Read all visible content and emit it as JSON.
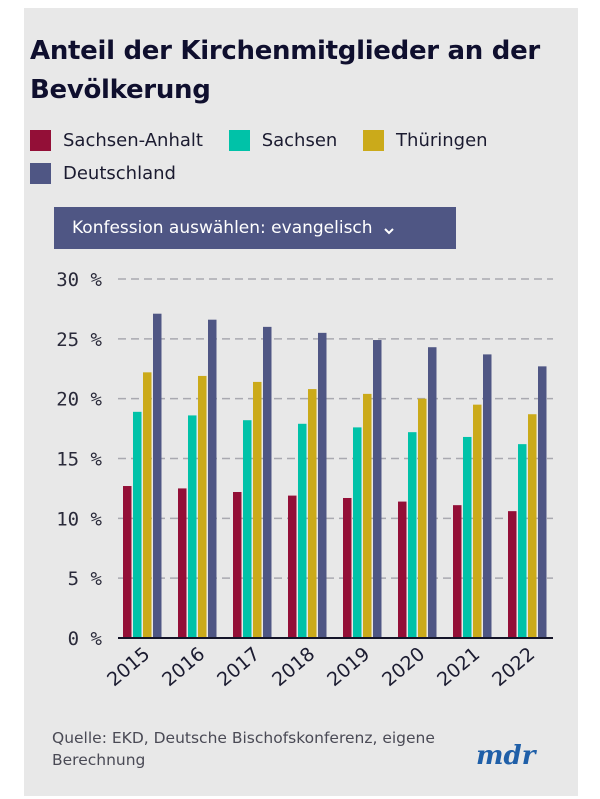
{
  "title": "Anteil der Kirchenmitglieder an der Bevölkerung",
  "legend": [
    {
      "label": "Sachsen-Anhalt",
      "color": "#930f37"
    },
    {
      "label": "Sachsen",
      "color": "#00c2a8"
    },
    {
      "label": "Thüringen",
      "color": "#cbaa1a"
    },
    {
      "label": "Deutschland",
      "color": "#4f5684"
    }
  ],
  "dropdown": {
    "label": "Konfession auswählen: evangelisch",
    "icon": "chevron-down-icon"
  },
  "source": "Quelle: EKD, Deutsche Bischofskonferenz, eigene Berechnung",
  "logo": "mdr",
  "chart_data": {
    "type": "bar",
    "title": "Anteil der Kirchenmitglieder an der Bevölkerung",
    "xlabel": "",
    "ylabel": "",
    "categories": [
      "2015",
      "2016",
      "2017",
      "2018",
      "2019",
      "2020",
      "2021",
      "2022"
    ],
    "series": [
      {
        "name": "Sachsen-Anhalt",
        "color": "#930f37",
        "values": [
          12.7,
          12.5,
          12.2,
          11.9,
          11.7,
          11.4,
          11.1,
          10.6
        ]
      },
      {
        "name": "Sachsen",
        "color": "#00c2a8",
        "values": [
          18.9,
          18.6,
          18.2,
          17.9,
          17.6,
          17.2,
          16.8,
          16.2
        ]
      },
      {
        "name": "Thüringen",
        "color": "#cbaa1a",
        "values": [
          22.2,
          21.9,
          21.4,
          20.8,
          20.4,
          20.0,
          19.5,
          18.7
        ]
      },
      {
        "name": "Deutschland",
        "color": "#4f5684",
        "values": [
          27.1,
          26.6,
          26.0,
          25.5,
          24.9,
          24.3,
          23.7,
          22.7
        ]
      }
    ],
    "ylim": [
      0,
      30
    ],
    "yticks": [
      0,
      5,
      10,
      15,
      20,
      25,
      30
    ],
    "ytick_labels": [
      "0 %",
      "5 %",
      "10 %",
      "15 %",
      "20 %",
      "25 %",
      "30 %"
    ],
    "grid": true,
    "legend_position": "top-left",
    "unit": "%"
  }
}
